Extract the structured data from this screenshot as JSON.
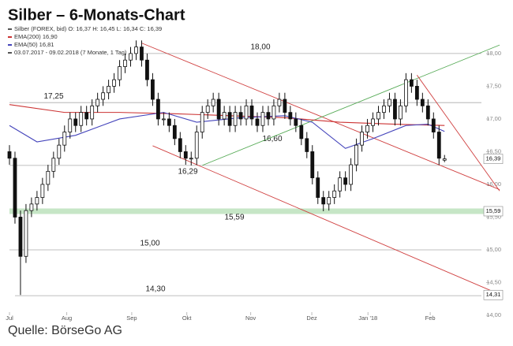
{
  "chart_data": {
    "type": "candlestick",
    "title": "Silber – 6-Monats-Chart",
    "legend": [
      {
        "text": "Silber (FOREX, bid)  O: 16,37  H: 16,45  L: 16,34  C: 16,39",
        "color": "#555555"
      },
      {
        "text": "EMA(200)  16,90",
        "color": "#cc3333"
      },
      {
        "text": "EMA(50)  16,81",
        "color": "#4444bb"
      },
      {
        "text": "03.07.2017 - 09.02.2018  (7 Monate, 1 Tag)",
        "color": "#555555"
      }
    ],
    "source": "Quelle: BörseGo AG",
    "xlim": [
      0,
      90
    ],
    "ylim": [
      14,
      18.3
    ],
    "xticks": [
      {
        "value": 0,
        "label": "Jul"
      },
      {
        "value": 10.4,
        "label": "Aug"
      },
      {
        "value": 22.2,
        "label": "Sep"
      },
      {
        "value": 32.2,
        "label": "Okt"
      },
      {
        "value": 43.8,
        "label": "Nov"
      },
      {
        "value": 54.9,
        "label": "Dez"
      },
      {
        "value": 65.1,
        "label": "Jan '18"
      },
      {
        "value": 76.4,
        "label": "Feb"
      }
    ],
    "yticks": [
      {
        "value": 14,
        "label": "14,00"
      },
      {
        "value": 14.5,
        "label": "14,50"
      },
      {
        "value": 15,
        "label": "15,00"
      },
      {
        "value": 15.5,
        "label": "15,50"
      },
      {
        "value": 16,
        "label": "16,00"
      },
      {
        "value": 16.5,
        "label": "16,50"
      },
      {
        "value": 17,
        "label": "17,00"
      },
      {
        "value": 17.5,
        "label": "17,50"
      },
      {
        "value": 18,
        "label": "18,00"
      }
    ],
    "open": [
      16.5,
      16.4,
      15.5,
      14.9,
      15.6,
      15.7,
      15.8,
      16.0,
      16.2,
      16.4,
      16.6,
      16.8,
      17.0,
      16.9,
      17.1,
      17.0,
      17.2,
      17.3,
      17.4,
      17.5,
      17.6,
      17.8,
      17.9,
      18.0,
      18.1,
      17.9,
      17.6,
      17.3,
      17.0,
      17.0,
      16.9,
      16.7,
      16.5,
      16.4,
      16.4,
      16.8,
      17.1,
      17.2,
      17.3,
      17.0,
      17.1,
      16.9,
      17.1,
      17.0,
      17.2,
      17.0,
      16.9,
      17.1,
      17.0,
      17.2,
      17.3,
      17.1,
      17.0,
      16.9,
      16.7,
      16.5,
      16.1,
      15.8,
      15.7,
      15.8,
      15.9,
      16.1,
      16.0,
      16.3,
      16.6,
      16.8,
      16.9,
      17.0,
      17.1,
      17.2,
      17.3,
      17.0,
      17.2,
      17.6,
      17.5,
      17.3,
      17.2,
      17.0,
      16.8,
      16.37
    ],
    "high": [
      16.6,
      16.5,
      15.6,
      15.7,
      15.8,
      15.9,
      16.1,
      16.3,
      16.5,
      16.7,
      16.9,
      17.1,
      17.1,
      17.2,
      17.2,
      17.3,
      17.4,
      17.5,
      17.6,
      17.7,
      17.9,
      18.0,
      18.1,
      18.2,
      18.2,
      18.0,
      17.7,
      17.4,
      17.1,
      17.1,
      17.0,
      16.8,
      16.6,
      16.5,
      16.9,
      17.2,
      17.3,
      17.4,
      17.4,
      17.2,
      17.2,
      17.2,
      17.2,
      17.3,
      17.3,
      17.1,
      17.2,
      17.2,
      17.3,
      17.4,
      17.4,
      17.2,
      17.1,
      17.0,
      16.8,
      16.6,
      16.2,
      15.9,
      15.9,
      16.0,
      16.2,
      16.2,
      16.4,
      16.7,
      16.9,
      17.0,
      17.1,
      17.2,
      17.3,
      17.4,
      17.4,
      17.3,
      17.7,
      17.7,
      17.6,
      17.4,
      17.3,
      17.1,
      16.9,
      16.45
    ],
    "low": [
      16.3,
      15.4,
      14.31,
      14.8,
      15.5,
      15.6,
      15.7,
      15.9,
      16.1,
      16.3,
      16.5,
      16.7,
      16.8,
      16.8,
      16.9,
      16.9,
      17.1,
      17.2,
      17.3,
      17.4,
      17.5,
      17.7,
      17.8,
      17.9,
      17.8,
      17.5,
      17.2,
      16.9,
      16.9,
      16.8,
      16.6,
      16.4,
      16.3,
      16.29,
      16.3,
      16.7,
      17.0,
      17.1,
      16.9,
      16.9,
      16.8,
      16.8,
      16.9,
      16.9,
      16.9,
      16.8,
      16.8,
      16.9,
      16.9,
      17.1,
      17.0,
      16.9,
      16.8,
      16.6,
      16.4,
      16.0,
      15.7,
      15.59,
      15.6,
      15.7,
      15.8,
      15.9,
      15.9,
      16.2,
      16.5,
      16.7,
      16.8,
      16.9,
      17.0,
      17.1,
      16.9,
      16.9,
      17.1,
      17.4,
      17.2,
      17.1,
      16.9,
      16.7,
      16.3,
      16.34
    ],
    "close": [
      16.4,
      15.5,
      14.9,
      15.6,
      15.7,
      15.8,
      16.0,
      16.2,
      16.4,
      16.6,
      16.8,
      17.0,
      16.9,
      17.1,
      17.0,
      17.2,
      17.3,
      17.4,
      17.5,
      17.6,
      17.8,
      17.9,
      18.0,
      18.1,
      17.9,
      17.6,
      17.3,
      17.0,
      17.0,
      16.9,
      16.7,
      16.5,
      16.4,
      16.4,
      16.8,
      17.1,
      17.2,
      17.3,
      17.0,
      17.1,
      16.9,
      17.1,
      17.0,
      17.2,
      17.0,
      16.9,
      17.1,
      17.0,
      17.2,
      17.3,
      17.1,
      17.0,
      16.9,
      16.7,
      16.5,
      16.1,
      15.8,
      15.7,
      15.8,
      15.9,
      16.1,
      16.0,
      16.3,
      16.6,
      16.8,
      16.9,
      17.0,
      17.1,
      17.2,
      17.3,
      17.0,
      17.2,
      17.6,
      17.5,
      17.3,
      17.2,
      17.0,
      16.8,
      16.4,
      16.39
    ],
    "series": [
      {
        "name": "EMA(200)",
        "color": "#cc3333",
        "x": [
          0,
          10,
          20,
          30,
          40,
          50,
          60,
          70,
          79
        ],
        "values": [
          17.22,
          17.1,
          17.1,
          17.08,
          17.05,
          17.02,
          16.95,
          16.92,
          16.9
        ]
      },
      {
        "name": "EMA(50)",
        "color": "#4444bb",
        "x": [
          0,
          5,
          12,
          20,
          28,
          34,
          42,
          50,
          55,
          61,
          66,
          72,
          76,
          79
        ],
        "values": [
          16.9,
          16.65,
          16.75,
          17.0,
          17.1,
          16.95,
          17.02,
          17.05,
          16.95,
          16.55,
          16.7,
          16.9,
          16.92,
          16.81
        ]
      }
    ],
    "trendlines": [
      {
        "color": "#d04040",
        "start": [
          24,
          18.16
        ],
        "end": [
          89,
          15.92
        ]
      },
      {
        "color": "#d04040",
        "start": [
          26,
          16.59
        ],
        "end": [
          89,
          14.32
        ]
      },
      {
        "color": "#55aa55",
        "start": [
          35,
          16.29
        ],
        "end": [
          89,
          18.13
        ]
      },
      {
        "color": "#d04040",
        "start": [
          74,
          17.67
        ],
        "end": [
          89,
          15.9
        ]
      }
    ],
    "levels": [
      {
        "value": 18,
        "label": "18,00"
      },
      {
        "value": 17.25,
        "label": "17,25"
      },
      {
        "value": 16.6,
        "label": "16,60"
      },
      {
        "value": 16.29,
        "label": "16,29"
      },
      {
        "value": 15.59,
        "label": "15,59"
      },
      {
        "value": 15,
        "label": "15,00"
      },
      {
        "value": 14.3,
        "label": "14,30"
      }
    ],
    "support_color": "#b8e0b8",
    "price_labels": [
      {
        "value": 16.39,
        "label": "16,39"
      },
      {
        "value": 15.59,
        "label": "15,59"
      },
      {
        "value": 14.31,
        "label": "14,31"
      }
    ]
  }
}
